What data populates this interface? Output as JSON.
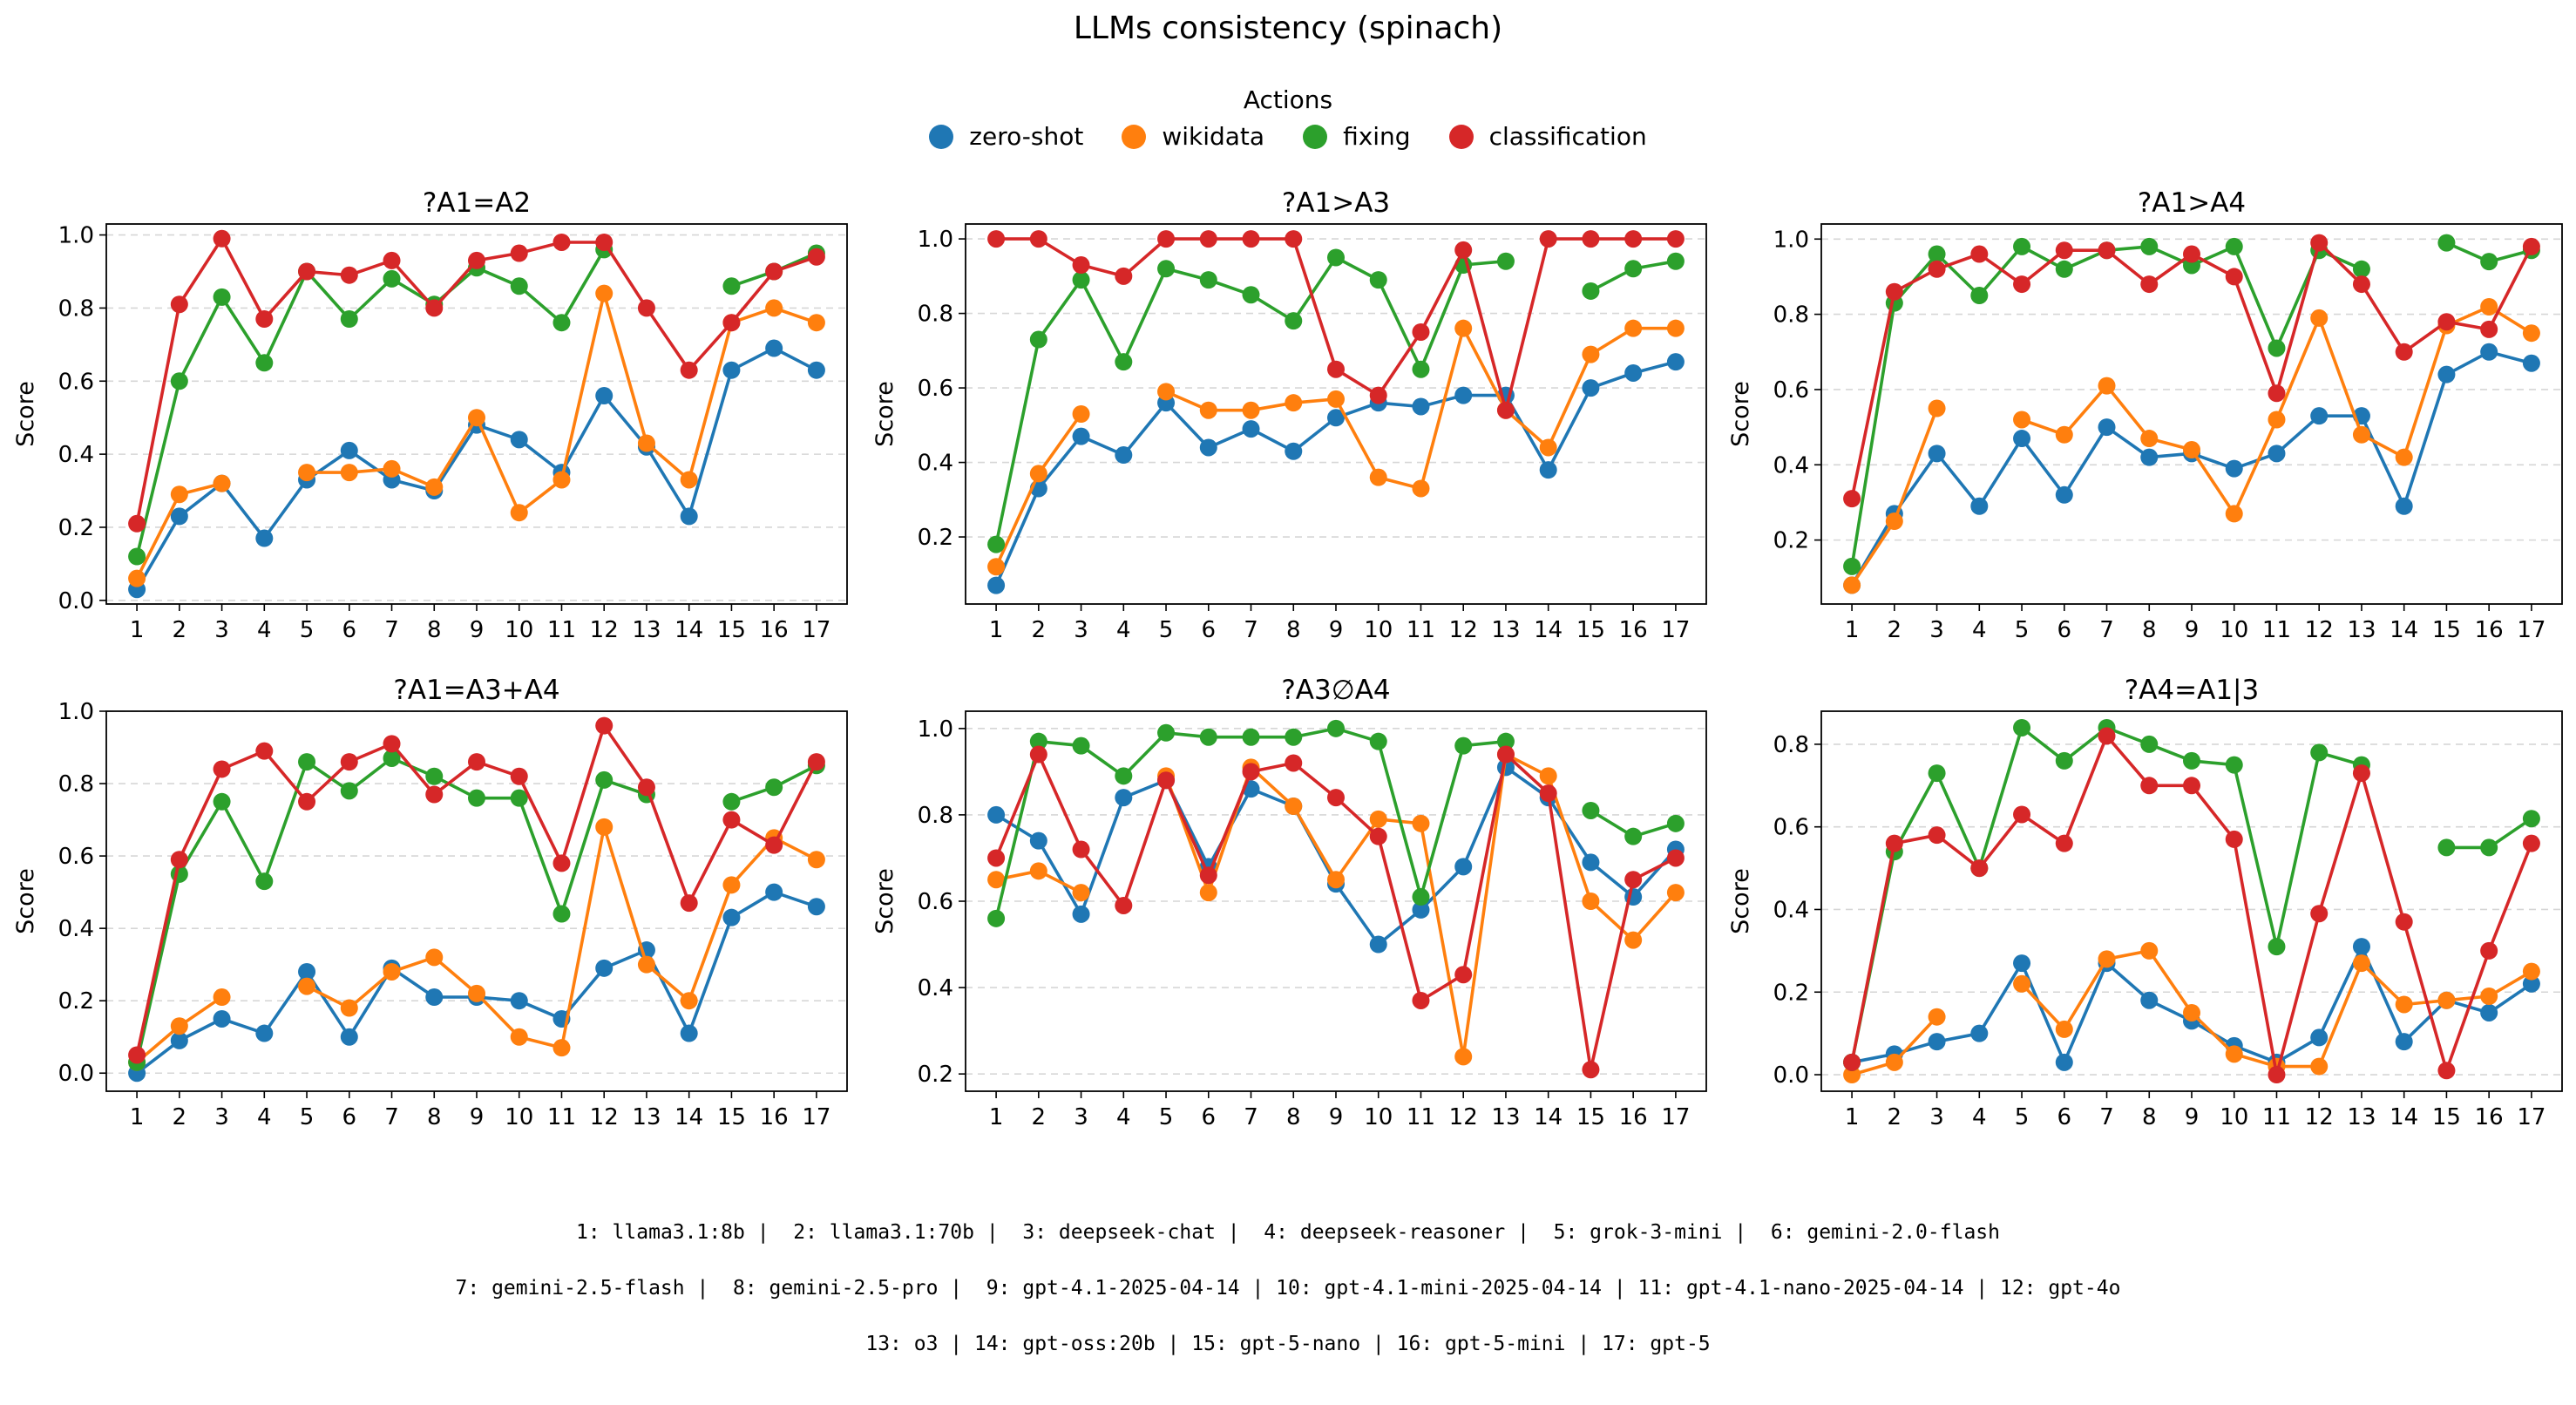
{
  "figure": {
    "title": "LLMs consistency (spinach)",
    "legend_title": "Actions",
    "footnote": [
      "1: llama3.1:8b |  2: llama3.1:70b |  3: deepseek-chat |  4: deepseek-reasoner |  5: grok-3-mini |  6: gemini-2.0-flash",
      "7: gemini-2.5-flash |  8: gemini-2.5-pro |  9: gpt-4.1-2025-04-14 | 10: gpt-4.1-mini-2025-04-14 | 11: gpt-4.1-nano-2025-04-14 | 12: gpt-4o",
      "13: o3 | 14: gpt-oss:20b | 15: gpt-5-nano | 16: gpt-5-mini | 17: gpt-5"
    ]
  },
  "series_info": [
    {
      "name": "zero-shot",
      "color": "#1f77b4"
    },
    {
      "name": "wikidata",
      "color": "#ff7f0e"
    },
    {
      "name": "fixing",
      "color": "#2ca02c"
    },
    {
      "name": "classification",
      "color": "#d62728"
    }
  ],
  "chart_data": [
    {
      "type": "line",
      "title": "?A1=A2",
      "xlabel": "",
      "ylabel": "Score",
      "x": [
        1,
        2,
        3,
        4,
        5,
        6,
        7,
        8,
        9,
        10,
        11,
        12,
        13,
        14,
        15,
        16,
        17
      ],
      "ylim": [
        -0.01,
        1.03
      ],
      "yticks": [
        0.0,
        0.2,
        0.4,
        0.6,
        0.8,
        1.0
      ],
      "grid": "y-dashed",
      "series": [
        {
          "name": "zero-shot",
          "values": [
            0.03,
            0.23,
            0.32,
            0.17,
            0.33,
            0.41,
            0.33,
            0.3,
            0.48,
            0.44,
            0.35,
            0.56,
            0.42,
            0.23,
            0.63,
            0.69,
            0.63
          ]
        },
        {
          "name": "wikidata",
          "values": [
            0.06,
            0.29,
            0.32,
            null,
            0.35,
            0.35,
            0.36,
            0.31,
            0.5,
            0.24,
            0.33,
            0.84,
            0.43,
            0.33,
            0.76,
            0.8,
            0.76
          ]
        },
        {
          "name": "fixing",
          "values": [
            0.12,
            0.6,
            0.83,
            0.65,
            0.9,
            0.77,
            0.88,
            0.81,
            0.91,
            0.86,
            0.76,
            0.96,
            null,
            null,
            0.86,
            0.9,
            0.95
          ]
        },
        {
          "name": "classification",
          "values": [
            0.21,
            0.81,
            0.99,
            0.77,
            0.9,
            0.89,
            0.93,
            0.8,
            0.93,
            0.95,
            0.98,
            0.98,
            0.8,
            0.63,
            0.76,
            0.9,
            0.94
          ]
        }
      ]
    },
    {
      "type": "line",
      "title": "?A1>A3",
      "xlabel": "",
      "ylabel": "Score",
      "x": [
        1,
        2,
        3,
        4,
        5,
        6,
        7,
        8,
        9,
        10,
        11,
        12,
        13,
        14,
        15,
        16,
        17
      ],
      "ylim": [
        0.02,
        1.04
      ],
      "yticks": [
        0.2,
        0.4,
        0.6,
        0.8,
        1.0
      ],
      "grid": "y-dashed",
      "series": [
        {
          "name": "zero-shot",
          "values": [
            0.07,
            0.33,
            0.47,
            0.42,
            0.56,
            0.44,
            0.49,
            0.43,
            0.52,
            0.56,
            0.55,
            0.58,
            0.58,
            0.38,
            0.6,
            0.64,
            0.67
          ]
        },
        {
          "name": "wikidata",
          "values": [
            0.12,
            0.37,
            0.53,
            null,
            0.59,
            0.54,
            0.54,
            0.56,
            0.57,
            0.36,
            0.33,
            0.76,
            0.54,
            0.44,
            0.69,
            0.76,
            0.76
          ]
        },
        {
          "name": "fixing",
          "values": [
            0.18,
            0.73,
            0.89,
            0.67,
            0.92,
            0.89,
            0.85,
            0.78,
            0.95,
            0.89,
            0.65,
            0.93,
            0.94,
            null,
            0.86,
            0.92,
            0.94
          ]
        },
        {
          "name": "classification",
          "values": [
            1.0,
            1.0,
            0.93,
            0.9,
            1.0,
            1.0,
            1.0,
            1.0,
            0.65,
            0.58,
            0.75,
            0.97,
            0.54,
            1.0,
            1.0,
            1.0,
            1.0
          ]
        }
      ]
    },
    {
      "type": "line",
      "title": "?A1>A4",
      "xlabel": "",
      "ylabel": "Score",
      "x": [
        1,
        2,
        3,
        4,
        5,
        6,
        7,
        8,
        9,
        10,
        11,
        12,
        13,
        14,
        15,
        16,
        17
      ],
      "ylim": [
        0.03,
        1.04
      ],
      "yticks": [
        0.2,
        0.4,
        0.6,
        0.8,
        1.0
      ],
      "grid": "y-dashed",
      "series": [
        {
          "name": "zero-shot",
          "values": [
            0.08,
            0.27,
            0.43,
            0.29,
            0.47,
            0.32,
            0.5,
            0.42,
            0.43,
            0.39,
            0.43,
            0.53,
            0.53,
            0.29,
            0.64,
            0.7,
            0.67
          ]
        },
        {
          "name": "wikidata",
          "values": [
            0.08,
            0.25,
            0.55,
            null,
            0.52,
            0.48,
            0.61,
            0.47,
            0.44,
            0.27,
            0.52,
            0.79,
            0.48,
            0.42,
            0.77,
            0.82,
            0.75
          ]
        },
        {
          "name": "fixing",
          "values": [
            0.13,
            0.83,
            0.96,
            0.85,
            0.98,
            0.92,
            0.97,
            0.98,
            0.93,
            0.98,
            0.71,
            0.97,
            0.92,
            null,
            0.99,
            0.94,
            0.97
          ]
        },
        {
          "name": "classification",
          "values": [
            0.31,
            0.86,
            0.92,
            0.96,
            0.88,
            0.97,
            0.97,
            0.88,
            0.96,
            0.9,
            0.59,
            0.99,
            0.88,
            0.7,
            0.78,
            0.76,
            0.98
          ]
        }
      ]
    },
    {
      "type": "line",
      "title": "?A1=A3+A4",
      "xlabel": "",
      "ylabel": "Score",
      "x": [
        1,
        2,
        3,
        4,
        5,
        6,
        7,
        8,
        9,
        10,
        11,
        12,
        13,
        14,
        15,
        16,
        17
      ],
      "ylim": [
        -0.05,
        1.0
      ],
      "yticks": [
        0.0,
        0.2,
        0.4,
        0.6,
        0.8,
        1.0
      ],
      "grid": "y-dashed",
      "series": [
        {
          "name": "zero-shot",
          "values": [
            0.0,
            0.09,
            0.15,
            0.11,
            0.28,
            0.1,
            0.29,
            0.21,
            0.21,
            0.2,
            0.15,
            0.29,
            0.34,
            0.11,
            0.43,
            0.5,
            0.46
          ]
        },
        {
          "name": "wikidata",
          "values": [
            0.03,
            0.13,
            0.21,
            null,
            0.24,
            0.18,
            0.28,
            0.32,
            0.22,
            0.1,
            0.07,
            0.68,
            0.3,
            0.2,
            0.52,
            0.65,
            0.59
          ]
        },
        {
          "name": "fixing",
          "values": [
            0.03,
            0.55,
            0.75,
            0.53,
            0.86,
            0.78,
            0.87,
            0.82,
            0.76,
            0.76,
            0.44,
            0.81,
            0.77,
            null,
            0.75,
            0.79,
            0.85
          ]
        },
        {
          "name": "classification",
          "values": [
            0.05,
            0.59,
            0.84,
            0.89,
            0.75,
            0.86,
            0.91,
            0.77,
            0.86,
            0.82,
            0.58,
            0.96,
            0.79,
            0.47,
            0.7,
            0.63,
            0.86
          ]
        }
      ]
    },
    {
      "type": "line",
      "title": "?A3∅A4",
      "xlabel": "",
      "ylabel": "Score",
      "x": [
        1,
        2,
        3,
        4,
        5,
        6,
        7,
        8,
        9,
        10,
        11,
        12,
        13,
        14,
        15,
        16,
        17
      ],
      "ylim": [
        0.16,
        1.04
      ],
      "yticks": [
        0.2,
        0.4,
        0.6,
        0.8,
        1.0
      ],
      "grid": "y-dashed",
      "series": [
        {
          "name": "zero-shot",
          "values": [
            0.8,
            0.74,
            0.57,
            0.84,
            0.88,
            0.68,
            0.86,
            0.82,
            0.64,
            0.5,
            0.58,
            0.68,
            0.91,
            0.84,
            0.69,
            0.61,
            0.72
          ]
        },
        {
          "name": "wikidata",
          "values": [
            0.65,
            0.67,
            0.62,
            null,
            0.89,
            0.62,
            0.91,
            0.82,
            0.65,
            0.79,
            0.78,
            0.24,
            0.94,
            0.89,
            0.6,
            0.51,
            0.62
          ]
        },
        {
          "name": "fixing",
          "values": [
            0.56,
            0.97,
            0.96,
            0.89,
            0.99,
            0.98,
            0.98,
            0.98,
            1.0,
            0.97,
            0.61,
            0.96,
            0.97,
            null,
            0.81,
            0.75,
            0.78
          ]
        },
        {
          "name": "classification",
          "values": [
            0.7,
            0.94,
            0.72,
            0.59,
            0.88,
            0.66,
            0.9,
            0.92,
            0.84,
            0.75,
            0.37,
            0.43,
            0.94,
            0.85,
            0.21,
            0.65,
            0.7
          ]
        }
      ]
    },
    {
      "type": "line",
      "title": "?A4=A1|3",
      "xlabel": "",
      "ylabel": "Score",
      "x": [
        1,
        2,
        3,
        4,
        5,
        6,
        7,
        8,
        9,
        10,
        11,
        12,
        13,
        14,
        15,
        16,
        17
      ],
      "ylim": [
        -0.04,
        0.88
      ],
      "yticks": [
        0.0,
        0.2,
        0.4,
        0.6,
        0.8
      ],
      "grid": "y-dashed",
      "series": [
        {
          "name": "zero-shot",
          "values": [
            0.03,
            0.05,
            0.08,
            0.1,
            0.27,
            0.03,
            0.27,
            0.18,
            0.13,
            0.07,
            0.03,
            0.09,
            0.31,
            0.08,
            0.18,
            0.15,
            0.22
          ]
        },
        {
          "name": "wikidata",
          "values": [
            0.0,
            0.03,
            0.14,
            null,
            0.22,
            0.11,
            0.28,
            0.3,
            0.15,
            0.05,
            0.02,
            0.02,
            0.27,
            0.17,
            0.18,
            0.19,
            0.25
          ]
        },
        {
          "name": "fixing",
          "values": [
            0.03,
            0.54,
            0.73,
            0.5,
            0.84,
            0.76,
            0.84,
            0.8,
            0.76,
            0.75,
            0.31,
            0.78,
            0.75,
            null,
            0.55,
            0.55,
            0.62
          ]
        },
        {
          "name": "classification",
          "values": [
            0.03,
            0.56,
            0.58,
            0.5,
            0.63,
            0.56,
            0.82,
            0.7,
            0.7,
            0.57,
            0.0,
            0.39,
            0.73,
            0.37,
            0.01,
            0.3,
            0.56
          ]
        }
      ]
    }
  ]
}
